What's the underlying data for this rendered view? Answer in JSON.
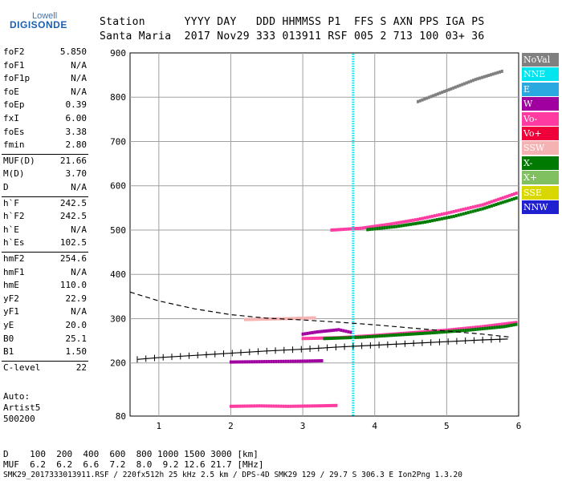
{
  "logo": {
    "line1": "Lowell",
    "line2": "DIGISONDE"
  },
  "header": {
    "row1": "Station      YYYY DAY   DDD HHMMSS P1  FFS S AXN PPS IGA PS",
    "row2": "Santa Maria  2017 Nov29 333 013911 RSF 005 2 713 100 03+ 36"
  },
  "params": [
    {
      "name": "foF2",
      "value": "5.850"
    },
    {
      "name": "foF1",
      "value": "N/A"
    },
    {
      "name": "foF1p",
      "value": "N/A"
    },
    {
      "name": "foE",
      "value": "N/A"
    },
    {
      "name": "foEp",
      "value": "0.39"
    },
    {
      "name": "fxI",
      "value": "6.00"
    },
    {
      "name": "foEs",
      "value": "3.38"
    },
    {
      "name": "fmin",
      "value": "2.80"
    },
    {
      "name": "MUF(D)",
      "value": "21.66"
    },
    {
      "name": "M(D)",
      "value": "3.70"
    },
    {
      "name": "D",
      "value": "N/A"
    },
    {
      "name": "h`F",
      "value": "242.5"
    },
    {
      "name": "h`F2",
      "value": "242.5"
    },
    {
      "name": "h`E",
      "value": "N/A"
    },
    {
      "name": "h`Es",
      "value": "102.5"
    },
    {
      "name": "hmF2",
      "value": "254.6"
    },
    {
      "name": "hmF1",
      "value": "N/A"
    },
    {
      "name": "hmE",
      "value": "110.0"
    },
    {
      "name": "yF2",
      "value": "22.9"
    },
    {
      "name": "yF1",
      "value": "N/A"
    },
    {
      "name": "yE",
      "value": "20.0"
    },
    {
      "name": "B0",
      "value": "25.1"
    },
    {
      "name": "B1",
      "value": "1.50"
    },
    {
      "name": "C-level",
      "value": "22"
    }
  ],
  "notes": {
    "auto": "Auto:",
    "artist": "Artist5",
    "code": "500200"
  },
  "legend": [
    {
      "label": "NoVal",
      "color": "#808080"
    },
    {
      "label": "NNE",
      "color": "#00e5ee"
    },
    {
      "label": "E",
      "color": "#2aa8e0"
    },
    {
      "label": "W",
      "color": "#a000a0"
    },
    {
      "label": "Vo-",
      "color": "#ff3aa0"
    },
    {
      "label": "Vo+",
      "color": "#f0003a"
    },
    {
      "label": "SSW",
      "color": "#f5b2b2"
    },
    {
      "label": "X-",
      "color": "#007a00"
    },
    {
      "label": "X+",
      "color": "#80c060"
    },
    {
      "label": "SSE",
      "color": "#d8d800"
    },
    {
      "label": "NNW",
      "color": "#2020d0"
    }
  ],
  "footer": {
    "row1": "D    100  200  400  600  800 1000 1500 3000 [km]",
    "row2": "MUF  6.2  6.2  6.6  7.2  8.0  9.2 12.6 21.7 [MHz]",
    "row3": "SMK29_2017333013911.RSF / 220fx512h 25 kHz 2.5 km / DPS-4D SMK29 129 / 29.7 S 306.3 E Ion2Png 1.3.20"
  },
  "chart_data": {
    "type": "scatter",
    "xlim": [
      0.6,
      6.0
    ],
    "ylim": [
      80,
      900
    ],
    "x_ticks": [
      1,
      2,
      3,
      4,
      5,
      6
    ],
    "y_ticks": [
      80,
      200,
      300,
      400,
      500,
      600,
      700,
      800,
      900
    ],
    "x_tick_labels": [
      "1",
      "2",
      "3",
      "4",
      "5",
      "6"
    ],
    "y_tick_labels": [
      "80",
      "200",
      "300",
      "400",
      "500",
      "600",
      "700",
      "800",
      "900"
    ],
    "grid": true,
    "legend_position": "right",
    "profile_dashed": {
      "x": [
        0.6,
        1.0,
        1.5,
        2.0,
        2.5,
        3.0,
        3.5,
        4.0,
        4.5,
        5.0,
        5.5,
        5.9
      ],
      "y": [
        360,
        340,
        322,
        309,
        301,
        297,
        292,
        286,
        279,
        272,
        265,
        258
      ]
    },
    "trace_marked": {
      "x": [
        0.7,
        1.0,
        1.5,
        2.0,
        2.5,
        3.0,
        3.5,
        4.0,
        4.5,
        5.0,
        5.5,
        5.85
      ],
      "y": [
        208,
        212,
        217,
        222,
        227,
        231,
        236,
        240,
        244,
        248,
        252,
        254
      ]
    },
    "regions": [
      {
        "name": "F2-o",
        "series": "Vo-",
        "x": [
          3.0,
          3.5,
          4.0,
          4.5,
          5.0,
          5.5,
          6.0
        ],
        "y": [
          255,
          257,
          262,
          268,
          274,
          282,
          292
        ]
      },
      {
        "name": "F2-x",
        "series": "X-",
        "x": [
          3.3,
          3.8,
          4.3,
          4.8,
          5.3,
          5.8,
          6.0
        ],
        "y": [
          255,
          258,
          263,
          268,
          274,
          282,
          288
        ]
      },
      {
        "name": "F2-w",
        "series": "W",
        "x": [
          3.0,
          3.2,
          3.5,
          3.7
        ],
        "y": [
          265,
          270,
          275,
          268
        ]
      },
      {
        "name": "multi-2F-o",
        "series": "Vo-",
        "x": [
          3.4,
          3.8,
          4.2,
          4.6,
          5.0,
          5.5,
          6.0
        ],
        "y": [
          500,
          504,
          513,
          524,
          538,
          557,
          585
        ]
      },
      {
        "name": "multi-2F-x",
        "series": "X-",
        "x": [
          3.9,
          4.3,
          4.7,
          5.1,
          5.5,
          6.0
        ],
        "y": [
          501,
          508,
          518,
          531,
          548,
          574
        ]
      },
      {
        "name": "3F",
        "series": "NoVal",
        "x": [
          4.6,
          5.0,
          5.4,
          5.8
        ],
        "y": [
          790,
          815,
          840,
          860
        ]
      },
      {
        "name": "Es",
        "series": "Vo-",
        "x": [
          2.0,
          2.4,
          2.8,
          3.2,
          3.5
        ],
        "y": [
          102,
          103,
          102,
          103,
          104
        ]
      },
      {
        "name": "Es-2",
        "series": "W",
        "x": [
          2.0,
          2.5,
          3.0,
          3.3
        ],
        "y": [
          202,
          203,
          204,
          205
        ]
      },
      {
        "name": "Es-3",
        "series": "SSW",
        "x": [
          2.2,
          2.8,
          3.2
        ],
        "y": [
          298,
          300,
          302
        ]
      },
      {
        "name": "vertical-echo",
        "series": "NNE",
        "x": [
          3.7,
          3.7,
          3.7,
          3.7,
          3.7,
          3.7
        ],
        "y": [
          80,
          200,
          350,
          500,
          700,
          900
        ]
      }
    ]
  }
}
